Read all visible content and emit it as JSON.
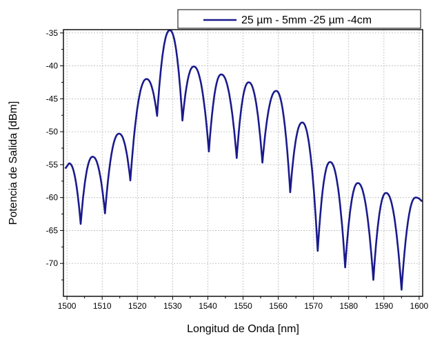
{
  "chart_data": {
    "type": "line",
    "title": "",
    "xlabel": "Longitud de Onda [nm]",
    "ylabel": "Potencia de Salida [dBm]",
    "xlim": [
      1499,
      1601
    ],
    "ylim": [
      -75,
      -34.5
    ],
    "xticks": [
      1500,
      1510,
      1520,
      1530,
      1540,
      1550,
      1560,
      1570,
      1580,
      1590,
      1600
    ],
    "yticks": [
      -35,
      -40,
      -45,
      -50,
      -55,
      -60,
      -65,
      -70
    ],
    "grid": true,
    "grid_style": "dotted",
    "legend_position": "top-right",
    "series": [
      {
        "name": "25 µm - 5mm -25 µm -4cm",
        "color": "#1a1a8c",
        "peaks": [
          {
            "x": 1500.6,
            "y": -54.8
          },
          {
            "x": 1507.3,
            "y": -53.8
          },
          {
            "x": 1514.8,
            "y": -50.3
          },
          {
            "x": 1522.6,
            "y": -42.0
          },
          {
            "x": 1529.2,
            "y": -34.6
          },
          {
            "x": 1536.0,
            "y": -40.1
          },
          {
            "x": 1543.8,
            "y": -41.3
          },
          {
            "x": 1551.6,
            "y": -42.5
          },
          {
            "x": 1559.4,
            "y": -43.8
          },
          {
            "x": 1566.8,
            "y": -48.6
          },
          {
            "x": 1574.7,
            "y": -54.6
          },
          {
            "x": 1582.6,
            "y": -57.8
          },
          {
            "x": 1590.6,
            "y": -59.3
          },
          {
            "x": 1599.0,
            "y": -60.0
          }
        ],
        "dips": [
          {
            "x": 1503.9,
            "y": -64.0
          },
          {
            "x": 1510.8,
            "y": -62.4
          },
          {
            "x": 1518.0,
            "y": -57.4
          },
          {
            "x": 1525.6,
            "y": -47.6
          },
          {
            "x": 1532.8,
            "y": -48.3
          },
          {
            "x": 1540.3,
            "y": -53.0
          },
          {
            "x": 1548.2,
            "y": -54.0
          },
          {
            "x": 1555.5,
            "y": -54.7
          },
          {
            "x": 1563.4,
            "y": -59.2
          },
          {
            "x": 1571.2,
            "y": -68.1
          },
          {
            "x": 1579.0,
            "y": -70.6
          },
          {
            "x": 1587.0,
            "y": -72.5
          },
          {
            "x": 1595.0,
            "y": -74.0
          }
        ],
        "end": {
          "x": 1600.8,
          "y": -60.6
        }
      }
    ]
  },
  "axis": {
    "xlabel": "Longitud de Onda [nm]",
    "ylabel": "Potencia de Salida [dBm]",
    "xtick_labels": [
      "1500",
      "1510",
      "1520",
      "1530",
      "1540",
      "1550",
      "1560",
      "1570",
      "1580",
      "1590",
      "1600"
    ],
    "ytick_labels": [
      "-35",
      "-40",
      "-45",
      "-50",
      "-55",
      "-60",
      "-65",
      "-70"
    ]
  },
  "legend": {
    "label": "25 µm - 5mm -25 µm -4cm"
  }
}
